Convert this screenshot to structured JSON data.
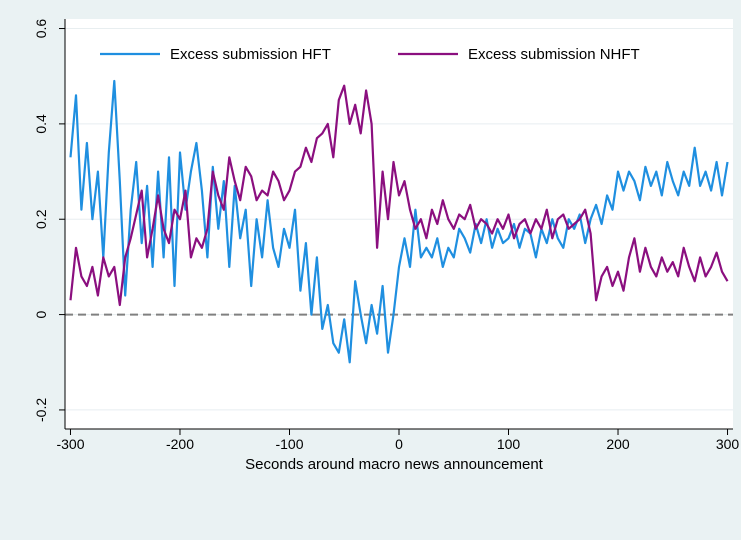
{
  "chart_data": {
    "type": "line",
    "title": "",
    "xlabel": "Seconds around macro news announcement",
    "ylabel": "",
    "xlim": [
      -305,
      305
    ],
    "ylim": [
      -0.24,
      0.62
    ],
    "xticks": [
      -300,
      -200,
      -100,
      0,
      100,
      200,
      300
    ],
    "xtick_labels": [
      "-300",
      "-200",
      "-100",
      "0",
      "100",
      "200",
      "300"
    ],
    "yticks": [
      -0.2,
      0,
      0.2,
      0.4,
      0.6
    ],
    "ytick_labels": [
      "-0.2",
      "0",
      "0.2",
      "0.4",
      "0.6"
    ],
    "grid": "horizontal",
    "legend_position": "top",
    "reference_line": {
      "y": 0,
      "style": "dashed",
      "color": "#808080"
    },
    "series": [
      {
        "name": "Excess submission HFT",
        "color": "#1f8fe0",
        "x": [
          -300,
          -295,
          -290,
          -285,
          -280,
          -275,
          -270,
          -265,
          -260,
          -255,
          -250,
          -245,
          -240,
          -235,
          -230,
          -225,
          -220,
          -215,
          -210,
          -205,
          -200,
          -195,
          -190,
          -185,
          -180,
          -175,
          -170,
          -165,
          -160,
          -155,
          -150,
          -145,
          -140,
          -135,
          -130,
          -125,
          -120,
          -115,
          -110,
          -105,
          -100,
          -95,
          -90,
          -85,
          -80,
          -75,
          -70,
          -65,
          -60,
          -55,
          -50,
          -45,
          -40,
          -35,
          -30,
          -25,
          -20,
          -15,
          -10,
          -5,
          0,
          5,
          10,
          15,
          20,
          25,
          30,
          35,
          40,
          45,
          50,
          55,
          60,
          65,
          70,
          75,
          80,
          85,
          90,
          95,
          100,
          105,
          110,
          115,
          120,
          125,
          130,
          135,
          140,
          145,
          150,
          155,
          160,
          165,
          170,
          175,
          180,
          185,
          190,
          195,
          200,
          205,
          210,
          215,
          220,
          225,
          230,
          235,
          240,
          245,
          250,
          255,
          260,
          265,
          270,
          275,
          280,
          285,
          290,
          295,
          300
        ],
        "y": [
          0.33,
          0.46,
          0.22,
          0.36,
          0.2,
          0.3,
          0.12,
          0.34,
          0.49,
          0.28,
          0.04,
          0.22,
          0.32,
          0.15,
          0.27,
          0.1,
          0.3,
          0.12,
          0.33,
          0.06,
          0.34,
          0.22,
          0.3,
          0.36,
          0.26,
          0.12,
          0.31,
          0.18,
          0.28,
          0.1,
          0.27,
          0.16,
          0.22,
          0.06,
          0.2,
          0.12,
          0.24,
          0.14,
          0.1,
          0.18,
          0.14,
          0.22,
          0.05,
          0.15,
          0.0,
          0.12,
          -0.03,
          0.02,
          -0.06,
          -0.08,
          -0.01,
          -0.1,
          0.07,
          0.0,
          -0.06,
          0.02,
          -0.04,
          0.06,
          -0.08,
          0.0,
          0.1,
          0.16,
          0.1,
          0.22,
          0.12,
          0.14,
          0.12,
          0.16,
          0.1,
          0.14,
          0.12,
          0.18,
          0.16,
          0.13,
          0.19,
          0.15,
          0.2,
          0.14,
          0.18,
          0.15,
          0.16,
          0.19,
          0.14,
          0.18,
          0.17,
          0.12,
          0.18,
          0.15,
          0.2,
          0.16,
          0.14,
          0.2,
          0.18,
          0.21,
          0.15,
          0.2,
          0.23,
          0.19,
          0.25,
          0.22,
          0.3,
          0.26,
          0.3,
          0.28,
          0.24,
          0.31,
          0.27,
          0.3,
          0.25,
          0.32,
          0.28,
          0.25,
          0.3,
          0.27,
          0.35,
          0.27,
          0.3,
          0.26,
          0.32,
          0.25,
          0.32
        ]
      },
      {
        "name": "Excess submission NHFT",
        "color": "#8b0f7f",
        "x": [
          -300,
          -295,
          -290,
          -285,
          -280,
          -275,
          -270,
          -265,
          -260,
          -255,
          -250,
          -245,
          -240,
          -235,
          -230,
          -225,
          -220,
          -215,
          -210,
          -205,
          -200,
          -195,
          -190,
          -185,
          -180,
          -175,
          -170,
          -165,
          -160,
          -155,
          -150,
          -145,
          -140,
          -135,
          -130,
          -125,
          -120,
          -115,
          -110,
          -105,
          -100,
          -95,
          -90,
          -85,
          -80,
          -75,
          -70,
          -65,
          -60,
          -55,
          -50,
          -45,
          -40,
          -35,
          -30,
          -25,
          -20,
          -15,
          -10,
          -5,
          0,
          5,
          10,
          15,
          20,
          25,
          30,
          35,
          40,
          45,
          50,
          55,
          60,
          65,
          70,
          75,
          80,
          85,
          90,
          95,
          100,
          105,
          110,
          115,
          120,
          125,
          130,
          135,
          140,
          145,
          150,
          155,
          160,
          165,
          170,
          175,
          180,
          185,
          190,
          195,
          200,
          205,
          210,
          215,
          220,
          225,
          230,
          235,
          240,
          245,
          250,
          255,
          260,
          265,
          270,
          275,
          280,
          285,
          290,
          295,
          300
        ],
        "y": [
          0.03,
          0.14,
          0.08,
          0.06,
          0.1,
          0.04,
          0.12,
          0.08,
          0.1,
          0.02,
          0.12,
          0.16,
          0.21,
          0.26,
          0.12,
          0.18,
          0.25,
          0.18,
          0.15,
          0.22,
          0.2,
          0.26,
          0.12,
          0.16,
          0.14,
          0.18,
          0.3,
          0.25,
          0.22,
          0.33,
          0.28,
          0.24,
          0.31,
          0.29,
          0.24,
          0.26,
          0.25,
          0.3,
          0.28,
          0.24,
          0.26,
          0.3,
          0.31,
          0.35,
          0.32,
          0.37,
          0.38,
          0.4,
          0.33,
          0.45,
          0.48,
          0.4,
          0.44,
          0.38,
          0.47,
          0.4,
          0.14,
          0.3,
          0.2,
          0.32,
          0.25,
          0.28,
          0.22,
          0.18,
          0.2,
          0.16,
          0.22,
          0.19,
          0.24,
          0.2,
          0.18,
          0.21,
          0.2,
          0.23,
          0.18,
          0.2,
          0.19,
          0.17,
          0.2,
          0.18,
          0.21,
          0.16,
          0.19,
          0.2,
          0.17,
          0.2,
          0.18,
          0.22,
          0.16,
          0.2,
          0.21,
          0.18,
          0.19,
          0.2,
          0.22,
          0.17,
          0.03,
          0.08,
          0.1,
          0.06,
          0.09,
          0.05,
          0.12,
          0.16,
          0.09,
          0.14,
          0.1,
          0.08,
          0.12,
          0.09,
          0.11,
          0.08,
          0.14,
          0.1,
          0.07,
          0.12,
          0.08,
          0.1,
          0.13,
          0.09,
          0.07
        ]
      }
    ]
  }
}
